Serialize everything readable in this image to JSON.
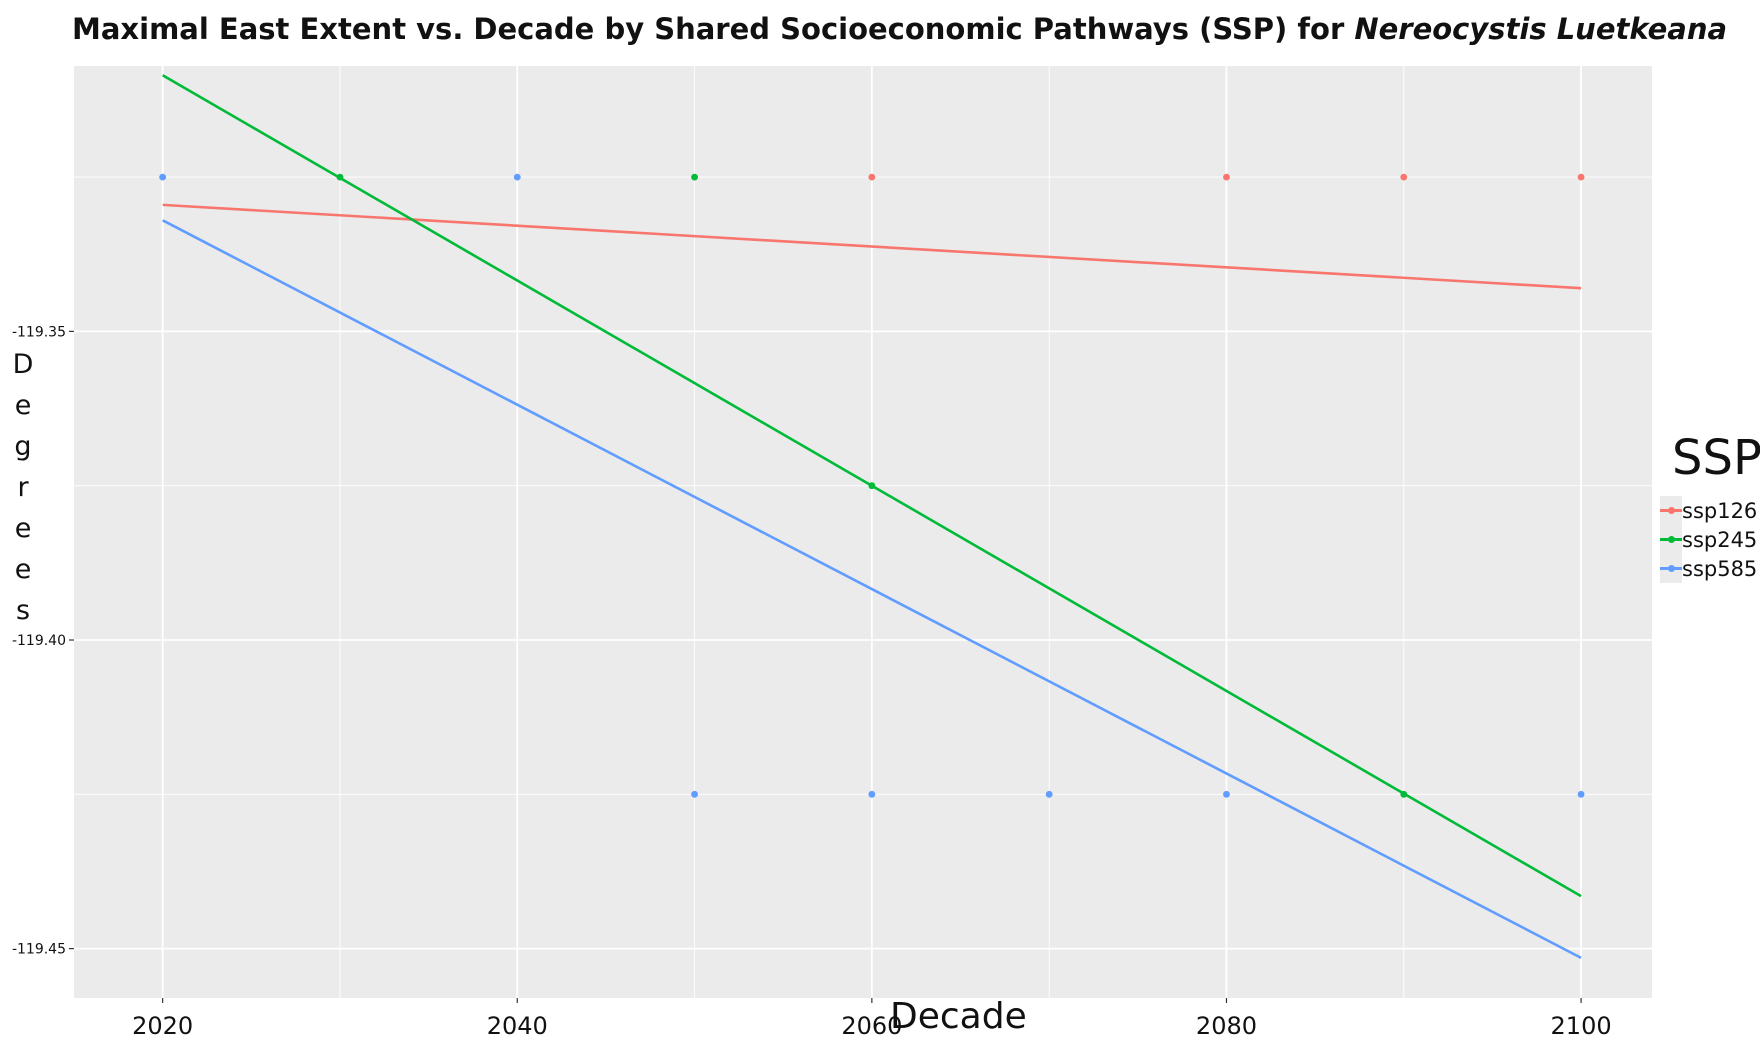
{
  "title": {
    "main": "Maximal East Extent vs. Decade by Shared Socioeconomic Pathways (SSP) for ",
    "species": "Nereocystis Luetkeana"
  },
  "chart_data": {
    "type": "scatter",
    "title": "Maximal East Extent vs. Decade by Shared Socioeconomic Pathways (SSP) for Nereocystis Luetkeana",
    "xlabel": "Decade",
    "ylabel": "Degrees",
    "xlim": [
      2015,
      2104
    ],
    "ylim": [
      -119.458,
      -119.307
    ],
    "x_ticks": [
      2020,
      2040,
      2060,
      2080,
      2100
    ],
    "x_tick_labels": [
      "2020",
      "2040",
      "2060",
      "2080",
      "2100"
    ],
    "x_minor_ticks": [
      2030,
      2050,
      2070,
      2090
    ],
    "y_ticks": [
      -119.35,
      -119.4,
      -119.45
    ],
    "y_tick_labels": [
      "-119.35",
      "-119.40",
      "-119.45"
    ],
    "y_minor_ticks": [
      -119.325,
      -119.375,
      -119.425
    ],
    "grid": true,
    "legend_title": "SSP",
    "legend_position": "right",
    "series": [
      {
        "name": "ssp126",
        "color": "#F8766D",
        "points": [
          {
            "x": 2060,
            "y": -119.325
          },
          {
            "x": 2080,
            "y": -119.325
          },
          {
            "x": 2090,
            "y": -119.325
          },
          {
            "x": 2100,
            "y": -119.325
          }
        ],
        "trend": {
          "x": [
            2020,
            2100
          ],
          "y": [
            -119.3295,
            -119.343
          ]
        }
      },
      {
        "name": "ssp245",
        "color": "#00BA38",
        "points": [
          {
            "x": 2030,
            "y": -119.325
          },
          {
            "x": 2050,
            "y": -119.325
          },
          {
            "x": 2060,
            "y": -119.375
          },
          {
            "x": 2090,
            "y": -119.425
          }
        ],
        "trend": {
          "x": [
            2020,
            2100
          ],
          "y": [
            -119.3085,
            -119.4415
          ]
        }
      },
      {
        "name": "ssp585",
        "color": "#619CFF",
        "points": [
          {
            "x": 2020,
            "y": -119.325
          },
          {
            "x": 2040,
            "y": -119.325
          },
          {
            "x": 2050,
            "y": -119.425
          },
          {
            "x": 2060,
            "y": -119.425
          },
          {
            "x": 2070,
            "y": -119.425
          },
          {
            "x": 2080,
            "y": -119.425
          },
          {
            "x": 2100,
            "y": -119.425
          }
        ],
        "trend": {
          "x": [
            2020,
            2100
          ],
          "y": [
            -119.332,
            -119.4515
          ]
        }
      }
    ]
  },
  "legend": {
    "title": "SSP",
    "items": [
      {
        "label": "ssp126",
        "color": "#F8766D"
      },
      {
        "label": "ssp245",
        "color": "#00BA38"
      },
      {
        "label": "ssp585",
        "color": "#619CFF"
      }
    ]
  },
  "colors": {
    "panel_background": "#EBEBEB",
    "grid": "#FFFFFF"
  }
}
